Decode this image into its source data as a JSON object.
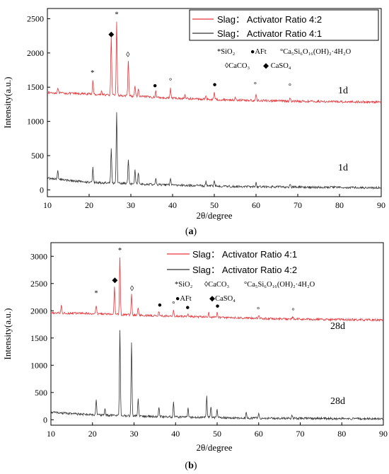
{
  "figure": {
    "panels": [
      {
        "label": "(a)",
        "label_letter": "a",
        "xlabel": "2θ/degree",
        "ylabel": "Intensity(a.u.)",
        "legend": {
          "red": "Slag：  Activator Ratio  4:2",
          "black": "Slag：  Activator Ratio  4:1"
        },
        "phase_legend": {
          "line1": [
            "*SiO₂",
            "●AFt",
            "°Ca₅Si₆O₁₆(OH)₂·4H₂O"
          ],
          "line2": [
            "◊CaCO₃",
            "◆ CaSO₄"
          ]
        },
        "day_labels": [
          "1d",
          "1d"
        ]
      },
      {
        "label": "(b)",
        "label_letter": "b",
        "xlabel": "2θ/degree",
        "ylabel": "Intensity(a.u.)",
        "legend": {
          "red": "Slag：  Activator Ratio  4:1",
          "black": "Slag：  Activator Ratio  4:2"
        },
        "phase_legend": {
          "line1": [
            "*SiO₂",
            "◊CaCO₃",
            "°Ca₅Si₆O₁₆(OH)₂·4H₂O"
          ],
          "line2": [
            "●AFt",
            "◆CaSO₄"
          ]
        },
        "day_labels": [
          "28d",
          "28d"
        ]
      }
    ]
  },
  "chart_data": [
    {
      "type": "line",
      "xlabel": "2θ/degree",
      "ylabel": "Intensity(a.u.)",
      "xlim": [
        10,
        90
      ],
      "ylim": [
        -100,
        2650
      ],
      "xticks": [
        10,
        20,
        30,
        40,
        50,
        60,
        70,
        80,
        90
      ],
      "yticks": [
        0,
        500,
        1000,
        1500,
        2000,
        2500
      ],
      "colors": {
        "red": "#e8353a",
        "black": "#333333"
      },
      "series": [
        {
          "name": "Slag：  Activator Ratio  4:2",
          "color": "#e8353a",
          "baseline": [
            [
              10,
              1420
            ],
            [
              20,
              1400
            ],
            [
              30,
              1370
            ],
            [
              40,
              1340
            ],
            [
              50,
              1320
            ],
            [
              60,
              1305
            ],
            [
              70,
              1295
            ],
            [
              80,
              1288
            ],
            [
              90,
              1282
            ]
          ],
          "peaks": [
            [
              12.5,
              1500
            ],
            [
              20.9,
              1600
            ],
            [
              23,
              1445
            ],
            [
              25.3,
              2250
            ],
            [
              26.6,
              2450
            ],
            [
              29.4,
              1900
            ],
            [
              31,
              1520
            ],
            [
              31.8,
              1480
            ],
            [
              36,
              1440
            ],
            [
              39.5,
              1480
            ],
            [
              43,
              1390
            ],
            [
              48,
              1380
            ],
            [
              50,
              1430
            ],
            [
              55,
              1350
            ],
            [
              60,
              1390
            ],
            [
              68.2,
              1340
            ]
          ]
        },
        {
          "name": "Slag：  Activator Ratio  4:1",
          "color": "#333333",
          "baseline": [
            [
              10,
              170
            ],
            [
              15,
              140
            ],
            [
              20,
              110
            ],
            [
              30,
              90
            ],
            [
              40,
              70
            ],
            [
              50,
              55
            ],
            [
              60,
              45
            ],
            [
              70,
              40
            ],
            [
              80,
              35
            ],
            [
              90,
              30
            ]
          ],
          "peaks": [
            [
              12.5,
              280
            ],
            [
              20.9,
              330
            ],
            [
              25.3,
              620
            ],
            [
              26.6,
              1150
            ],
            [
              29.4,
              450
            ],
            [
              31,
              300
            ],
            [
              31.8,
              250
            ],
            [
              36,
              160
            ],
            [
              39.5,
              180
            ],
            [
              48,
              120
            ],
            [
              50,
              150
            ],
            [
              60,
              100
            ],
            [
              68.2,
              80
            ]
          ]
        }
      ],
      "annotations": [
        {
          "symbol": "*",
          "x": 20.8,
          "y": 1680
        },
        {
          "symbol": "◆",
          "x": 25.3,
          "y": 2240
        },
        {
          "symbol": "*",
          "x": 26.6,
          "y": 2530
        },
        {
          "symbol": "◊",
          "x": 29.3,
          "y": 1940
        },
        {
          "symbol": "●",
          "x": 35.8,
          "y": 1490
        },
        {
          "symbol": "°",
          "x": 39.5,
          "y": 1560
        },
        {
          "symbol": "●",
          "x": 50.1,
          "y": 1510
        },
        {
          "symbol": "°",
          "x": 59.8,
          "y": 1500
        },
        {
          "symbol": "°",
          "x": 68.1,
          "y": 1480
        }
      ]
    },
    {
      "type": "line",
      "xlabel": "2θ/degree",
      "ylabel": "Intensity(a.u.)",
      "xlim": [
        10,
        90
      ],
      "ylim": [
        -100,
        3250
      ],
      "xticks": [
        10,
        20,
        30,
        40,
        50,
        60,
        70,
        80,
        90
      ],
      "yticks": [
        0,
        500,
        1000,
        1500,
        2000,
        2500,
        3000
      ],
      "colors": {
        "red": "#e8353a",
        "black": "#333333"
      },
      "series": [
        {
          "name": "Slag：  Activator Ratio  4:1",
          "color": "#e8353a",
          "baseline": [
            [
              10,
              1960
            ],
            [
              20,
              1950
            ],
            [
              30,
              1920
            ],
            [
              40,
              1900
            ],
            [
              50,
              1880
            ],
            [
              60,
              1860
            ],
            [
              70,
              1845
            ],
            [
              80,
              1838
            ],
            [
              90,
              1830
            ]
          ],
          "peaks": [
            [
              12.5,
              2100
            ],
            [
              20.9,
              2100
            ],
            [
              25.3,
              2430
            ],
            [
              26.6,
              2960
            ],
            [
              29.4,
              2300
            ],
            [
              31,
              2060
            ],
            [
              36,
              1990
            ],
            [
              39.5,
              2000
            ],
            [
              43,
              1960
            ],
            [
              48,
              1960
            ],
            [
              50,
              1970
            ],
            [
              60,
              1920
            ],
            [
              68.2,
              1880
            ]
          ]
        },
        {
          "name": "Slag：  Activator Ratio  4:2",
          "color": "#333333",
          "baseline": [
            [
              10,
              140
            ],
            [
              15,
              110
            ],
            [
              20,
              90
            ],
            [
              30,
              70
            ],
            [
              40,
              50
            ],
            [
              50,
              40
            ],
            [
              60,
              30
            ],
            [
              70,
              25
            ],
            [
              80,
              20
            ],
            [
              90,
              15
            ]
          ],
          "peaks": [
            [
              20.9,
              370
            ],
            [
              23,
              200
            ],
            [
              26.6,
              1650
            ],
            [
              29.4,
              1420
            ],
            [
              31,
              380
            ],
            [
              36,
              230
            ],
            [
              39.5,
              320
            ],
            [
              43,
              210
            ],
            [
              47.5,
              420
            ],
            [
              48.5,
              250
            ],
            [
              50,
              180
            ],
            [
              57,
              120
            ],
            [
              60,
              110
            ],
            [
              68,
              90
            ]
          ]
        }
      ],
      "annotations": [
        {
          "symbol": "*",
          "x": 20.9,
          "y": 2280
        },
        {
          "symbol": "◆",
          "x": 25.4,
          "y": 2520
        },
        {
          "symbol": "*",
          "x": 26.6,
          "y": 3070
        },
        {
          "symbol": "◊",
          "x": 29.5,
          "y": 2370
        },
        {
          "symbol": "●",
          "x": 36.2,
          "y": 2070
        },
        {
          "symbol": "°",
          "x": 39.5,
          "y": 2080
        },
        {
          "symbol": "●",
          "x": 42.9,
          "y": 2020
        },
        {
          "symbol": "●",
          "x": 50.1,
          "y": 2050
        },
        {
          "symbol": "°",
          "x": 59.9,
          "y": 1980
        },
        {
          "symbol": "°",
          "x": 68.3,
          "y": 1960
        }
      ]
    }
  ]
}
